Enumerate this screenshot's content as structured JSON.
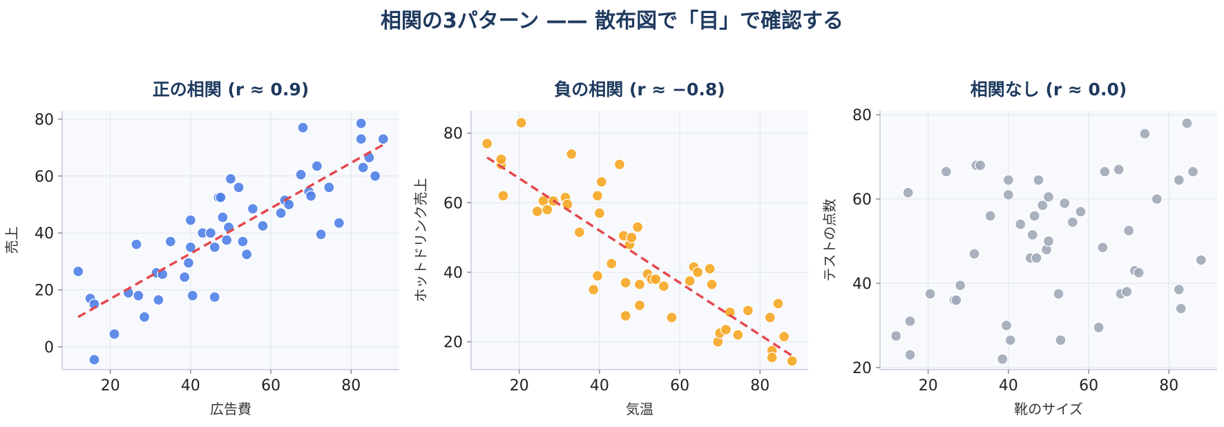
{
  "figure_title": "相関の3パターン —— 散布図で「目」で確認する",
  "chart_data": [
    {
      "type": "scatter",
      "title": "正の相関 (r ≈ 0.9)",
      "xlabel": "広告費",
      "ylabel": "売上",
      "xlim": [
        8,
        92
      ],
      "ylim": [
        -8,
        83
      ],
      "xticks": [
        20,
        40,
        60,
        80
      ],
      "yticks": [
        0,
        20,
        40,
        60,
        80
      ],
      "point_color": "#4f7fe8",
      "trend_color": "#e5484d",
      "trend": [
        [
          12,
          10.5
        ],
        [
          88,
          71
        ]
      ],
      "points": [
        [
          12,
          26.5
        ],
        [
          15,
          17
        ],
        [
          16,
          15
        ],
        [
          16,
          -4.5
        ],
        [
          21,
          4.5
        ],
        [
          24.5,
          19
        ],
        [
          26.5,
          36
        ],
        [
          27,
          18
        ],
        [
          28.5,
          10.5
        ],
        [
          31.5,
          26
        ],
        [
          32,
          16.5
        ],
        [
          33,
          25.5
        ],
        [
          35,
          37
        ],
        [
          38.5,
          24.5
        ],
        [
          39.5,
          29.5
        ],
        [
          40,
          35
        ],
        [
          40,
          44.5
        ],
        [
          40.5,
          18
        ],
        [
          43,
          40
        ],
        [
          45,
          40
        ],
        [
          46,
          35
        ],
        [
          46,
          17.5
        ],
        [
          47,
          52.5
        ],
        [
          47.5,
          52.5
        ],
        [
          48,
          45.5
        ],
        [
          49,
          37.5
        ],
        [
          49.5,
          42
        ],
        [
          50,
          59
        ],
        [
          52,
          56
        ],
        [
          53,
          37
        ],
        [
          54,
          32.5
        ],
        [
          55.5,
          48.5
        ],
        [
          58,
          42.5
        ],
        [
          62.5,
          47
        ],
        [
          63.5,
          51.5
        ],
        [
          64.5,
          50
        ],
        [
          67.5,
          60.5
        ],
        [
          68,
          77
        ],
        [
          69.5,
          54.5
        ],
        [
          70,
          53
        ],
        [
          71.5,
          63.5
        ],
        [
          72.5,
          39.5
        ],
        [
          74.5,
          56
        ],
        [
          77,
          43.5
        ],
        [
          82.5,
          73
        ],
        [
          82.5,
          78.5
        ],
        [
          83,
          63
        ],
        [
          84.5,
          66.5
        ],
        [
          86,
          60
        ],
        [
          88,
          73
        ]
      ]
    },
    {
      "type": "scatter",
      "title": "負の相関 (r ≈ −0.8)",
      "xlabel": "気温",
      "ylabel": "ホットドリンク売上",
      "xlim": [
        8,
        92
      ],
      "ylim": [
        12,
        86.5
      ],
      "xticks": [
        20,
        40,
        60,
        80
      ],
      "yticks": [
        20,
        40,
        60,
        80
      ],
      "point_color": "#f5a623",
      "trend_color": "#e5484d",
      "trend": [
        [
          12,
          73
        ],
        [
          88,
          16
        ]
      ],
      "points": [
        [
          12,
          77
        ],
        [
          15.5,
          71
        ],
        [
          15.5,
          72.5
        ],
        [
          16,
          62
        ],
        [
          20.5,
          83
        ],
        [
          24.5,
          57.5
        ],
        [
          26,
          60.5
        ],
        [
          27,
          58
        ],
        [
          28.5,
          60.5
        ],
        [
          31.5,
          61.5
        ],
        [
          32,
          59.5
        ],
        [
          33,
          74
        ],
        [
          35,
          51.5
        ],
        [
          38.5,
          35
        ],
        [
          39.5,
          62
        ],
        [
          39.5,
          39
        ],
        [
          40,
          57
        ],
        [
          40.5,
          66
        ],
        [
          43,
          42.5
        ],
        [
          45,
          71
        ],
        [
          46,
          50.5
        ],
        [
          46.5,
          37
        ],
        [
          46.5,
          27.5
        ],
        [
          47.5,
          48
        ],
        [
          48,
          50
        ],
        [
          49.5,
          53
        ],
        [
          50,
          36.5
        ],
        [
          50,
          30.5
        ],
        [
          52,
          39.5
        ],
        [
          53,
          38
        ],
        [
          54,
          38
        ],
        [
          56,
          36
        ],
        [
          58,
          27
        ],
        [
          62.5,
          37.5
        ],
        [
          63.5,
          41.5
        ],
        [
          64.5,
          40
        ],
        [
          67.5,
          41
        ],
        [
          68,
          36.5
        ],
        [
          69.5,
          20
        ],
        [
          70,
          22.5
        ],
        [
          71.5,
          23.5
        ],
        [
          72.5,
          28.5
        ],
        [
          74.5,
          22
        ],
        [
          77,
          29
        ],
        [
          82.5,
          27
        ],
        [
          83,
          17.5
        ],
        [
          83,
          15.5
        ],
        [
          84.5,
          31
        ],
        [
          86,
          21.5
        ],
        [
          88,
          14.5
        ]
      ]
    },
    {
      "type": "scatter",
      "title": "相関なし (r ≈ 0.0)",
      "xlabel": "靴のサイズ",
      "ylabel": "テストの点数",
      "xlim": [
        8,
        92
      ],
      "ylim": [
        19.5,
        81
      ],
      "xticks": [
        20,
        40,
        60,
        80
      ],
      "yticks": [
        20,
        40,
        60,
        80
      ],
      "point_color": "#a0a8b8",
      "points": [
        [
          12,
          27.5
        ],
        [
          15,
          61.5
        ],
        [
          15.5,
          31
        ],
        [
          15.5,
          23
        ],
        [
          20.5,
          37.5
        ],
        [
          24.5,
          66.5
        ],
        [
          26.5,
          36
        ],
        [
          27,
          36
        ],
        [
          28,
          39.5
        ],
        [
          31.5,
          47
        ],
        [
          32,
          68
        ],
        [
          33,
          68
        ],
        [
          35.5,
          56
        ],
        [
          38.5,
          22
        ],
        [
          39.5,
          30
        ],
        [
          40,
          61
        ],
        [
          40,
          64.5
        ],
        [
          40.5,
          26.5
        ],
        [
          43,
          54
        ],
        [
          45.5,
          46
        ],
        [
          46,
          51.5
        ],
        [
          46.5,
          56
        ],
        [
          47,
          46
        ],
        [
          47.5,
          64.5
        ],
        [
          48.5,
          58.5
        ],
        [
          49.5,
          48
        ],
        [
          50,
          60.5
        ],
        [
          50,
          50
        ],
        [
          52.5,
          37.5
        ],
        [
          53,
          26.5
        ],
        [
          54,
          59
        ],
        [
          56,
          54.5
        ],
        [
          58,
          57
        ],
        [
          62.5,
          29.5
        ],
        [
          63.5,
          48.5
        ],
        [
          64,
          66.5
        ],
        [
          67.5,
          67
        ],
        [
          68,
          37.5
        ],
        [
          69.5,
          38
        ],
        [
          70,
          52.5
        ],
        [
          71.5,
          43
        ],
        [
          72.5,
          42.5
        ],
        [
          74,
          75.5
        ],
        [
          77,
          60
        ],
        [
          82.5,
          38.5
        ],
        [
          82.5,
          64.5
        ],
        [
          83,
          34
        ],
        [
          84.5,
          78
        ],
        [
          86,
          66.5
        ],
        [
          88,
          45.5
        ]
      ]
    }
  ]
}
